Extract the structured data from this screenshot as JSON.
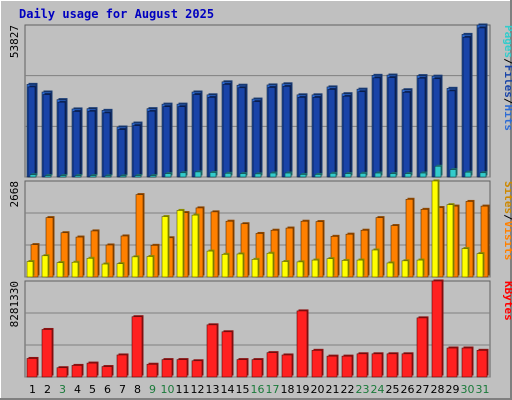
{
  "chart_data": [
    {
      "type": "bar",
      "title": "Daily usage for August 2025",
      "categories": [
        "1",
        "2",
        "3",
        "4",
        "5",
        "6",
        "7",
        "8",
        "9",
        "10",
        "11",
        "12",
        "13",
        "14",
        "15",
        "16",
        "17",
        "18",
        "19",
        "20",
        "21",
        "22",
        "23",
        "24",
        "25",
        "26",
        "27",
        "28",
        "29",
        "30",
        "31"
      ],
      "weekend_days": [
        "3",
        "9",
        "10",
        "16",
        "17",
        "23",
        "24",
        "30",
        "31"
      ],
      "ymax_label": "53827",
      "ylim": [
        0,
        53827
      ],
      "grid": true,
      "series": [
        {
          "name": "Hits",
          "color": "#2e6cd4",
          "values": [
            32800,
            30100,
            27400,
            24100,
            24200,
            23600,
            17700,
            19100,
            24200,
            25800,
            25800,
            30100,
            29100,
            33700,
            32500,
            27600,
            32600,
            33000,
            29100,
            29100,
            31900,
            29500,
            31100,
            36000,
            36100,
            30900,
            35900,
            35700,
            31400,
            50500,
            53827
          ]
        },
        {
          "name": "Files",
          "color": "#1844a8",
          "values": [
            31900,
            29200,
            26500,
            23200,
            23300,
            22700,
            16800,
            18200,
            23300,
            24900,
            24900,
            29200,
            28200,
            32800,
            31600,
            26700,
            31700,
            32100,
            28200,
            28200,
            31000,
            28600,
            30200,
            35100,
            35200,
            30000,
            35000,
            34800,
            30500,
            49500,
            52800
          ]
        },
        {
          "name": "Pages",
          "color": "#33cccc",
          "values": [
            800,
            500,
            500,
            500,
            500,
            400,
            400,
            500,
            500,
            1200,
            1500,
            1800,
            1600,
            1300,
            1200,
            1100,
            1400,
            1400,
            900,
            900,
            1300,
            1200,
            1300,
            1400,
            1200,
            1200,
            1400,
            3800,
            2600,
            1700,
            1500
          ]
        }
      ],
      "axis_label": [
        "Pages",
        "/",
        "Files",
        "/",
        "Hits"
      ],
      "axis_label_colors": [
        "#33cccc",
        "#000000",
        "#1844a8",
        "#000000",
        "#2e6cd4"
      ]
    },
    {
      "type": "bar",
      "ymax_label": "2668",
      "ylim": [
        0,
        2668
      ],
      "grid": true,
      "series": [
        {
          "name": "Sites",
          "color": "#ffff00",
          "values": [
            430,
            590,
            400,
            410,
            520,
            360,
            370,
            560,
            570,
            1680,
            1850,
            1720,
            720,
            630,
            640,
            490,
            660,
            430,
            420,
            470,
            510,
            460,
            470,
            750,
            390,
            450,
            470,
            2668,
            2010,
            790,
            650
          ]
        },
        {
          "name": "Visits",
          "color": "#ff8000",
          "values": [
            900,
            1650,
            1230,
            1110,
            1280,
            890,
            1140,
            2290,
            880,
            1090,
            1790,
            1920,
            1810,
            1550,
            1480,
            1210,
            1300,
            1360,
            1550,
            1540,
            1130,
            1190,
            1300,
            1650,
            1430,
            2160,
            1880,
            1930,
            1970,
            2100,
            1970
          ]
        }
      ],
      "axis_label": [
        "Sites",
        "/",
        "Visits"
      ],
      "axis_label_colors": [
        "#cc8800",
        "#000000",
        "#ff8000"
      ]
    },
    {
      "type": "bar",
      "ymax_label": "8281330",
      "ylim": [
        0,
        8281330
      ],
      "grid": true,
      "series": [
        {
          "name": "KBytes",
          "color": "#ff2020",
          "values": [
            1600000,
            4100000,
            800000,
            1000000,
            1200000,
            900000,
            1900000,
            5200000,
            1100000,
            1500000,
            1500000,
            1400000,
            4500000,
            3900000,
            1500000,
            1500000,
            2100000,
            1900000,
            5700000,
            2300000,
            1800000,
            1800000,
            2000000,
            2000000,
            2000000,
            2000000,
            5100000,
            8281330,
            2500000,
            2500000,
            2300000
          ]
        }
      ],
      "axis_label": [
        "KBytes"
      ],
      "axis_label_colors": [
        "#ff0000"
      ]
    }
  ]
}
